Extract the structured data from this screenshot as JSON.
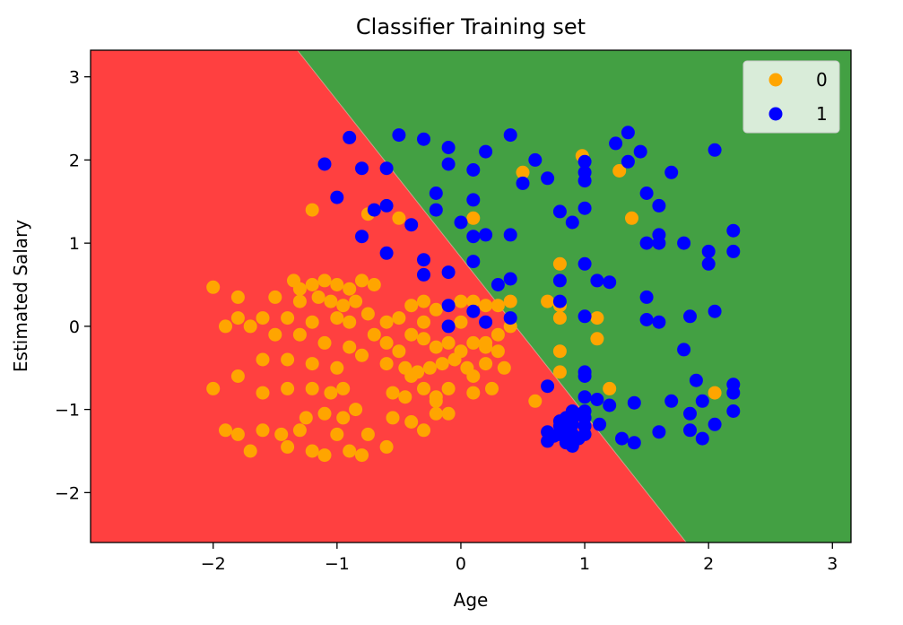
{
  "chart_data": {
    "type": "scatter",
    "title": "Classifier Training set",
    "xlabel": "Age",
    "ylabel": "Estimated Salary",
    "xlim": [
      -2.99,
      3.15
    ],
    "ylim": [
      -2.6,
      3.32
    ],
    "xticks": [
      -2,
      -1,
      0,
      1,
      2,
      3
    ],
    "yticks": [
      -2,
      -1,
      0,
      1,
      2,
      3
    ],
    "xtick_labels": [
      "−2",
      "−1",
      "0",
      "1",
      "2",
      "3"
    ],
    "ytick_labels": [
      "−2",
      "−1",
      "0",
      "1",
      "2",
      "3"
    ],
    "grid": false,
    "legend_position": "top-right",
    "regions": [
      {
        "class": "0",
        "color": "#ff4040"
      },
      {
        "class": "1",
        "color": "#43a043"
      }
    ],
    "decision_boundary": {
      "top": [
        -1.32,
        3.32
      ],
      "bottom": [
        1.82,
        -2.6
      ]
    },
    "series": [
      {
        "name": "0",
        "color": "#ffa500",
        "points": [
          [
            -2.0,
            0.47
          ],
          [
            -1.8,
            0.35
          ],
          [
            -1.5,
            0.35
          ],
          [
            -1.35,
            0.55
          ],
          [
            -1.3,
            0.45
          ],
          [
            -1.2,
            0.5
          ],
          [
            -1.1,
            0.55
          ],
          [
            -1.0,
            0.5
          ],
          [
            -0.9,
            0.45
          ],
          [
            -0.8,
            0.55
          ],
          [
            -0.7,
            0.5
          ],
          [
            -1.6,
            0.1
          ],
          [
            -1.7,
            0.0
          ],
          [
            -1.9,
            0.0
          ],
          [
            -1.4,
            0.1
          ],
          [
            -1.2,
            0.05
          ],
          [
            -1.0,
            0.1
          ],
          [
            -0.9,
            0.05
          ],
          [
            -0.75,
            0.15
          ],
          [
            -0.6,
            0.05
          ],
          [
            -0.5,
            0.1
          ],
          [
            -1.3,
            0.3
          ],
          [
            -1.15,
            0.35
          ],
          [
            -1.05,
            0.3
          ],
          [
            -0.95,
            0.25
          ],
          [
            -0.85,
            0.3
          ],
          [
            -1.8,
            0.1
          ],
          [
            -1.5,
            -0.1
          ],
          [
            -1.3,
            -0.1
          ],
          [
            -1.1,
            -0.2
          ],
          [
            -0.9,
            -0.25
          ],
          [
            -0.7,
            -0.1
          ],
          [
            -0.6,
            -0.2
          ],
          [
            -1.6,
            -0.4
          ],
          [
            -1.4,
            -0.4
          ],
          [
            -1.2,
            -0.45
          ],
          [
            -1.0,
            -0.5
          ],
          [
            -0.8,
            -0.35
          ],
          [
            -0.6,
            -0.45
          ],
          [
            -0.5,
            -0.3
          ],
          [
            -2.0,
            -0.75
          ],
          [
            -1.8,
            -0.6
          ],
          [
            -1.6,
            -0.8
          ],
          [
            -1.4,
            -0.75
          ],
          [
            -1.2,
            -0.75
          ],
          [
            -1.05,
            -0.8
          ],
          [
            -0.95,
            -0.75
          ],
          [
            -1.9,
            -1.25
          ],
          [
            -1.8,
            -1.3
          ],
          [
            -1.7,
            -1.5
          ],
          [
            -1.6,
            -1.25
          ],
          [
            -1.45,
            -1.3
          ],
          [
            -1.4,
            -1.45
          ],
          [
            -1.3,
            -1.25
          ],
          [
            -1.2,
            -1.5
          ],
          [
            -1.1,
            -1.55
          ],
          [
            -1.0,
            -1.3
          ],
          [
            -0.9,
            -1.5
          ],
          [
            -0.8,
            -1.55
          ],
          [
            -0.75,
            -1.3
          ],
          [
            -0.6,
            -1.45
          ],
          [
            -1.25,
            -1.1
          ],
          [
            -1.1,
            -1.05
          ],
          [
            -0.95,
            -1.1
          ],
          [
            -0.85,
            -1.0
          ],
          [
            -0.4,
            0.25
          ],
          [
            -0.3,
            0.3
          ],
          [
            -0.2,
            0.2
          ],
          [
            -0.1,
            0.25
          ],
          [
            0.0,
            0.3
          ],
          [
            0.1,
            0.3
          ],
          [
            0.2,
            0.25
          ],
          [
            0.3,
            0.25
          ],
          [
            0.4,
            0.3
          ],
          [
            -0.4,
            -0.1
          ],
          [
            -0.3,
            -0.15
          ],
          [
            -0.2,
            -0.25
          ],
          [
            -0.1,
            -0.2
          ],
          [
            0.0,
            -0.3
          ],
          [
            0.1,
            -0.2
          ],
          [
            0.2,
            -0.25
          ],
          [
            0.3,
            -0.3
          ],
          [
            -0.45,
            -0.5
          ],
          [
            -0.35,
            -0.55
          ],
          [
            -0.25,
            -0.5
          ],
          [
            -0.15,
            -0.45
          ],
          [
            -0.05,
            -0.4
          ],
          [
            0.05,
            -0.5
          ],
          [
            0.2,
            -0.45
          ],
          [
            0.35,
            -0.5
          ],
          [
            -0.55,
            -0.8
          ],
          [
            -0.45,
            -0.85
          ],
          [
            -0.3,
            -0.75
          ],
          [
            -0.2,
            -0.85
          ],
          [
            -0.1,
            -0.75
          ],
          [
            0.1,
            -0.8
          ],
          [
            0.25,
            -0.75
          ],
          [
            -0.55,
            -1.1
          ],
          [
            -0.4,
            -1.15
          ],
          [
            -0.3,
            -1.25
          ],
          [
            -0.2,
            -1.05
          ],
          [
            -0.1,
            -1.05
          ],
          [
            -0.6,
            1.45
          ],
          [
            -0.5,
            1.3
          ],
          [
            -0.75,
            1.35
          ],
          [
            -1.2,
            1.4
          ],
          [
            0.1,
            1.3
          ],
          [
            0.5,
            1.85
          ],
          [
            0.98,
            2.05
          ],
          [
            1.28,
            1.87
          ],
          [
            1.38,
            1.3
          ],
          [
            0.8,
            0.75
          ],
          [
            0.8,
            0.25
          ],
          [
            0.8,
            0.1
          ],
          [
            0.7,
            0.3
          ],
          [
            0.8,
            -0.3
          ],
          [
            0.8,
            -0.55
          ],
          [
            1.1,
            0.1
          ],
          [
            1.1,
            -0.15
          ],
          [
            1.2,
            -0.75
          ],
          [
            0.6,
            -0.9
          ],
          [
            2.05,
            -0.8
          ],
          [
            -0.2,
            -0.9
          ],
          [
            0.1,
            -0.6
          ],
          [
            -0.4,
            -0.6
          ],
          [
            0.4,
            0.0
          ],
          [
            0.3,
            -0.1
          ],
          [
            0.2,
            -0.2
          ],
          [
            0.0,
            0.05
          ],
          [
            -0.3,
            0.05
          ]
        ]
      },
      {
        "name": "1",
        "color": "#0000ff",
        "points": [
          [
            -0.9,
            2.27
          ],
          [
            -1.1,
            1.95
          ],
          [
            -0.8,
            1.9
          ],
          [
            -0.6,
            1.9
          ],
          [
            -1.0,
            1.55
          ],
          [
            -0.7,
            1.4
          ],
          [
            -0.6,
            1.45
          ],
          [
            -0.4,
            1.22
          ],
          [
            -0.8,
            1.08
          ],
          [
            -0.6,
            0.88
          ],
          [
            -0.5,
            2.3
          ],
          [
            -0.3,
            2.25
          ],
          [
            -0.1,
            2.15
          ],
          [
            0.2,
            2.1
          ],
          [
            0.4,
            2.3
          ],
          [
            -0.1,
            1.95
          ],
          [
            0.1,
            1.88
          ],
          [
            -0.2,
            1.6
          ],
          [
            0.1,
            1.52
          ],
          [
            -0.2,
            1.4
          ],
          [
            0.0,
            1.25
          ],
          [
            0.1,
            1.08
          ],
          [
            0.2,
            1.1
          ],
          [
            0.4,
            1.1
          ],
          [
            0.6,
            2.0
          ],
          [
            0.7,
            1.78
          ],
          [
            0.5,
            1.72
          ],
          [
            1.0,
            1.98
          ],
          [
            1.0,
            1.85
          ],
          [
            1.0,
            1.75
          ],
          [
            1.35,
            2.33
          ],
          [
            1.25,
            2.2
          ],
          [
            1.45,
            2.1
          ],
          [
            1.35,
            1.98
          ],
          [
            0.8,
            1.38
          ],
          [
            0.9,
            1.25
          ],
          [
            1.0,
            1.42
          ],
          [
            1.5,
            1.6
          ],
          [
            1.6,
            1.45
          ],
          [
            1.7,
            1.85
          ],
          [
            1.5,
            1.0
          ],
          [
            1.6,
            1.1
          ],
          [
            1.6,
            1.0
          ],
          [
            1.8,
            1.0
          ],
          [
            2.0,
            0.9
          ],
          [
            2.0,
            0.75
          ],
          [
            2.2,
            0.9
          ],
          [
            2.2,
            1.15
          ],
          [
            2.05,
            2.12
          ],
          [
            -0.3,
            0.8
          ],
          [
            -0.3,
            0.62
          ],
          [
            -0.1,
            0.65
          ],
          [
            0.1,
            0.78
          ],
          [
            0.3,
            0.5
          ],
          [
            0.4,
            0.57
          ],
          [
            0.8,
            0.55
          ],
          [
            1.0,
            0.75
          ],
          [
            1.1,
            0.55
          ],
          [
            1.2,
            0.53
          ],
          [
            0.8,
            0.3
          ],
          [
            -0.1,
            0.25
          ],
          [
            0.1,
            0.18
          ],
          [
            0.2,
            0.05
          ],
          [
            0.4,
            0.1
          ],
          [
            -0.1,
            0.0
          ],
          [
            1.0,
            0.12
          ],
          [
            1.5,
            0.35
          ],
          [
            1.5,
            0.08
          ],
          [
            1.6,
            0.05
          ],
          [
            2.05,
            0.18
          ],
          [
            1.85,
            0.12
          ],
          [
            1.8,
            -0.28
          ],
          [
            0.7,
            -0.72
          ],
          [
            1.0,
            -0.55
          ],
          [
            1.0,
            -0.6
          ],
          [
            1.0,
            -0.85
          ],
          [
            1.1,
            -0.88
          ],
          [
            1.2,
            -0.95
          ],
          [
            1.4,
            -0.92
          ],
          [
            1.7,
            -0.9
          ],
          [
            1.9,
            -0.65
          ],
          [
            2.2,
            -0.7
          ],
          [
            2.2,
            -0.8
          ],
          [
            1.95,
            -0.9
          ],
          [
            2.2,
            -1.02
          ],
          [
            1.85,
            -1.05
          ],
          [
            2.05,
            -1.18
          ],
          [
            1.85,
            -1.25
          ],
          [
            1.6,
            -1.27
          ],
          [
            1.3,
            -1.35
          ],
          [
            1.4,
            -1.4
          ],
          [
            1.95,
            -1.35
          ],
          [
            0.7,
            -1.27
          ],
          [
            0.7,
            -1.38
          ],
          [
            0.8,
            -1.2
          ],
          [
            0.85,
            -1.25
          ],
          [
            0.9,
            -1.3
          ],
          [
            0.95,
            -1.35
          ],
          [
            1.0,
            -1.2
          ],
          [
            1.0,
            -1.1
          ],
          [
            1.0,
            -1.02
          ],
          [
            0.9,
            -1.02
          ],
          [
            0.85,
            -1.1
          ],
          [
            0.8,
            -1.14
          ],
          [
            0.9,
            -1.18
          ],
          [
            0.95,
            -1.06
          ],
          [
            0.75,
            -1.32
          ],
          [
            0.85,
            -1.4
          ],
          [
            0.9,
            -1.44
          ],
          [
            1.0,
            -1.3
          ],
          [
            1.12,
            -1.18
          ],
          [
            0.8,
            -1.3
          ]
        ]
      }
    ]
  }
}
